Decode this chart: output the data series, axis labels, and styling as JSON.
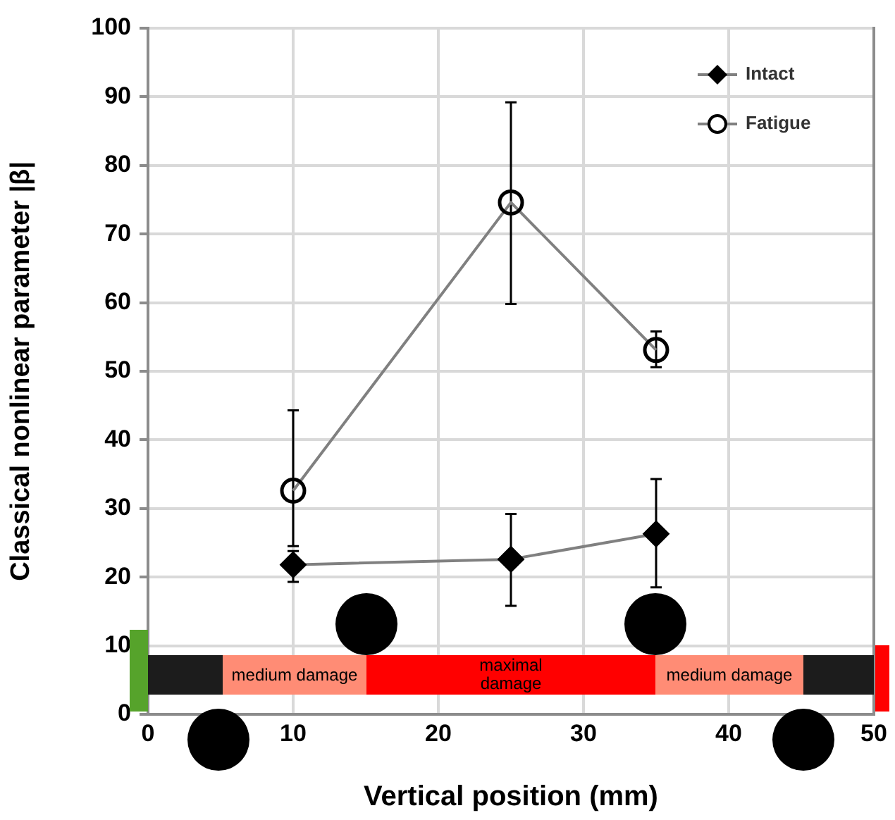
{
  "chart_data": {
    "type": "line",
    "xlabel": "Vertical position (mm)",
    "ylabel": "Classical nonlinear parameter |β|",
    "x": [
      10,
      25,
      35
    ],
    "series": [
      {
        "name": "Intact",
        "color": "#000000",
        "marker": "diamond",
        "values": [
          21.8,
          22.6,
          26.3
        ],
        "errors": [
          [
            19.3,
            23.8
          ],
          [
            15.8,
            29.2
          ],
          [
            18.5,
            34.3
          ]
        ]
      },
      {
        "name": "Fatigue",
        "color": "#000000",
        "marker": "circle",
        "values": [
          32.6,
          74.6,
          53.1
        ],
        "errors": [
          [
            24.5,
            44.3
          ],
          [
            59.8,
            89.2
          ],
          [
            50.6,
            55.8
          ]
        ]
      }
    ],
    "xlim": [
      0,
      50
    ],
    "xticks": [
      0,
      10,
      20,
      30,
      40,
      50
    ],
    "ylim": [
      0,
      100
    ],
    "yticks": [
      0,
      10,
      20,
      30,
      40,
      50,
      60,
      70,
      80,
      90,
      100
    ],
    "grid": true,
    "legend": "top right",
    "line_style": "solid",
    "annotations": [
      "medium damage",
      "maximal damage",
      "medium damage"
    ]
  }
}
